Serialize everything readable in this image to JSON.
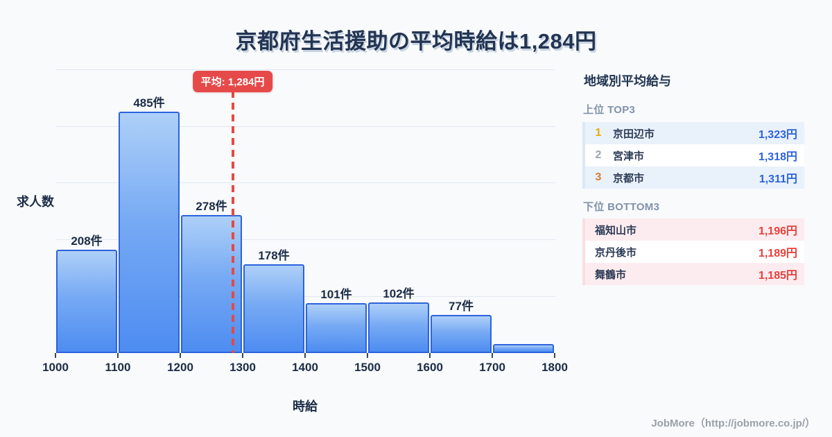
{
  "title": "京都府生活援助の平均時給は1,284円",
  "chart_data": {
    "type": "bar",
    "title": "京都府生活援助の平均時給は1,284円",
    "xlabel": "時給",
    "ylabel": "求人数",
    "bin_edges": [
      1000,
      1100,
      1200,
      1300,
      1400,
      1500,
      1600,
      1700,
      1800
    ],
    "tick_labels": [
      "1000",
      "1100",
      "1200",
      "1300",
      "1400",
      "1500",
      "1600",
      "1700",
      "1800"
    ],
    "values": [
      208,
      485,
      278,
      178,
      101,
      102,
      77,
      18
    ],
    "bar_labels": [
      "208件",
      "485件",
      "278件",
      "178件",
      "101件",
      "102件",
      "77件",
      ""
    ],
    "average": 1284,
    "average_label": "平均: 1,284円",
    "xlim": [
      1000,
      1800
    ],
    "ylim": [
      0,
      570
    ],
    "grid": "horizontal",
    "legend": "none"
  },
  "sidebar": {
    "heading": "地域別平均給与",
    "top_section": {
      "label": "上位 TOP3",
      "rows": [
        {
          "rank": "1",
          "name": "京田辺市",
          "value": "1,323円"
        },
        {
          "rank": "2",
          "name": "宮津市",
          "value": "1,318円"
        },
        {
          "rank": "3",
          "name": "京都市",
          "value": "1,311円"
        }
      ]
    },
    "bottom_section": {
      "label": "下位 BOTTOM3",
      "rows": [
        {
          "name": "福知山市",
          "value": "1,196円"
        },
        {
          "name": "京丹後市",
          "value": "1,189円"
        },
        {
          "name": "舞鶴市",
          "value": "1,185円"
        }
      ]
    }
  },
  "footer": {
    "credit": "JobMore（http://jobmore.co.jp/）"
  },
  "colors": {
    "background": "#f8fafc",
    "title_text": "#233452",
    "bar_fill_top": "#aed0f8",
    "bar_fill_bottom": "#4d8cf1",
    "bar_border": "#2c63dc",
    "gridline": "#e2e7f1",
    "average_line": "#e64944",
    "average_badge_bg": "#e64949",
    "top_row_bg": "#e9f1fb",
    "bottom_row_bg": "#fdecef",
    "value_blue": "#2b62e0",
    "value_red": "#e7403b",
    "rank_colors": [
      "#ecaa00",
      "#99a3b1",
      "#dd7c28"
    ],
    "footer_text": "#9ba1a8"
  }
}
